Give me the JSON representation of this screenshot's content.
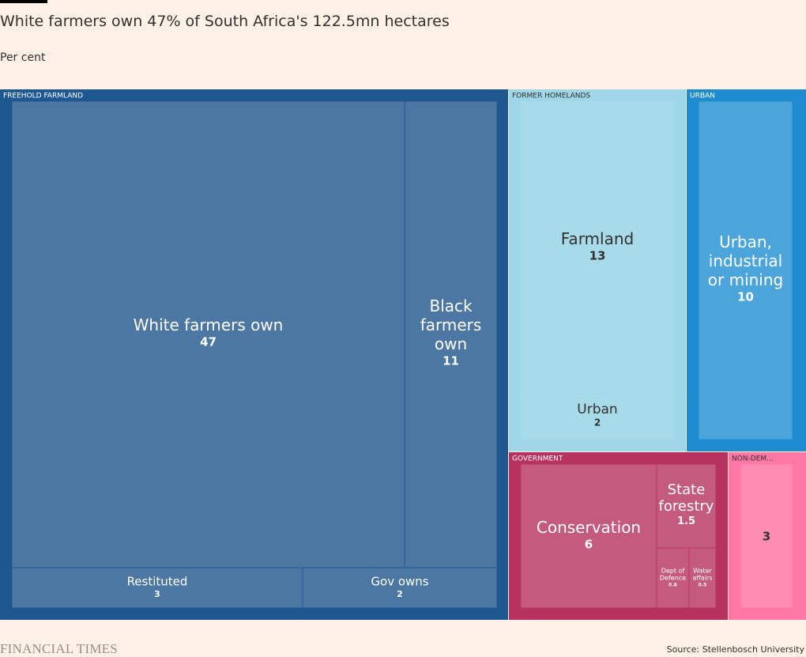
{
  "title": "White farmers own 47% of South Africa's 122.5mn hectares",
  "subtitle": "Per cent",
  "footer": {
    "logo": "FINANCIAL TIMES",
    "source": "Source: Stellenbosch University"
  },
  "chart_data": {
    "type": "treemap",
    "unit": "Per cent",
    "groups": [
      {
        "name": "FREEHOLD FARMLAND",
        "color": "#1f5791",
        "leaf_color": "#4b77a2",
        "children": [
          {
            "name": "White farmers own",
            "value": 47
          },
          {
            "name": "Black farmers own",
            "value": 11
          },
          {
            "name": "Restituted",
            "value": 3
          },
          {
            "name": "Gov owns",
            "value": 2
          }
        ]
      },
      {
        "name": "FORMER HOMELANDS",
        "color": "#9fd6e8",
        "leaf_color": "#a8dbea",
        "children": [
          {
            "name": "Farmland",
            "value": 13
          },
          {
            "name": "Urban",
            "value": 2
          }
        ]
      },
      {
        "name": "URBAN",
        "color": "#1e8ccf",
        "leaf_color": "#4ba5da",
        "children": [
          {
            "name": "Urban, industrial or mining",
            "value": 10
          }
        ]
      },
      {
        "name": "GOVERNMENT",
        "color": "#b7325f",
        "leaf_color": "#c45b7f",
        "children": [
          {
            "name": "Conservation",
            "value": 6
          },
          {
            "name": "State forestry",
            "value": 1.5
          },
          {
            "name": "Dept of Defence",
            "value": 0.6
          },
          {
            "name": "Water affairs",
            "value": 0.5
          }
        ]
      },
      {
        "name": "NON-DEM...",
        "color": "#ff77a4",
        "leaf_color": "#ff8db3",
        "children": [
          {
            "name": "",
            "value": 3
          }
        ]
      }
    ]
  }
}
